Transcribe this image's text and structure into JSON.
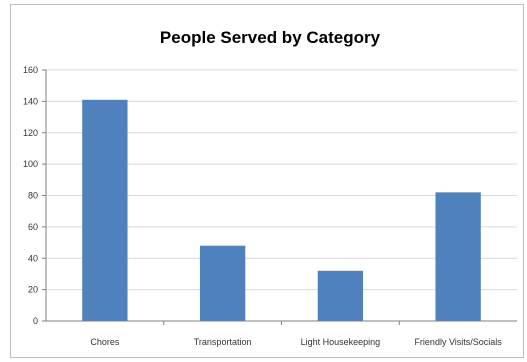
{
  "chart_data": {
    "type": "bar",
    "title": "People Served by Category",
    "xlabel": "",
    "ylabel": "",
    "categories": [
      "Chores",
      "Transportation",
      "Light Housekeeping",
      "Friendly Visits/Socials"
    ],
    "values": [
      141,
      48,
      32,
      82
    ],
    "ylim": [
      0,
      160
    ],
    "yticks": [
      0,
      20,
      40,
      60,
      80,
      100,
      120,
      140,
      160
    ],
    "grid": true,
    "bar_color": "#4f81bd",
    "grid_color": "#d9d9d9"
  }
}
